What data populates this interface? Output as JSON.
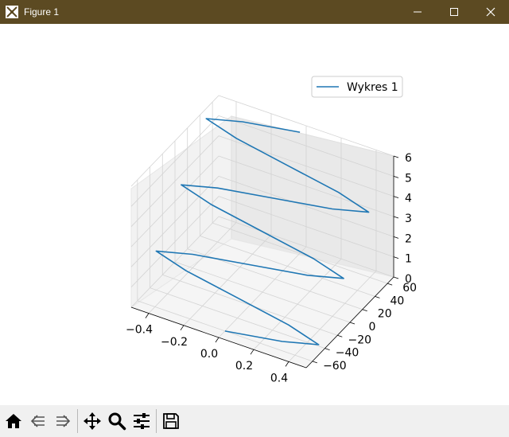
{
  "window": {
    "title": "Figure 1",
    "titlebar_color": "#5c4a22",
    "controls": [
      "minimize-icon",
      "maximize-icon",
      "close-icon"
    ]
  },
  "toolbar": {
    "buttons": [
      {
        "name": "home-icon"
      },
      {
        "name": "back-icon"
      },
      {
        "name": "forward-icon"
      },
      {
        "name": "pan-icon"
      },
      {
        "name": "zoom-icon"
      },
      {
        "name": "configure-subplots-icon"
      },
      {
        "name": "save-icon"
      }
    ]
  },
  "chart_data": {
    "type": "line",
    "projection": "3d",
    "title": "",
    "legend": {
      "entries": [
        "Wykres 1"
      ],
      "position": "top-right"
    },
    "series": [
      {
        "name": "Wykres 1",
        "color": "#1f77b4",
        "x": [
          0.0,
          0.31,
          0.5,
          0.31,
          0.0,
          -0.31,
          -0.5,
          -0.31,
          0.0,
          0.31,
          0.5,
          0.31,
          0.0,
          -0.31,
          -0.5,
          -0.31,
          0.0,
          0.31,
          0.5,
          0.31,
          0.0,
          -0.31,
          -0.5,
          -0.31,
          0.0
        ],
        "y": [
          -60,
          -55,
          -50,
          -45,
          -40,
          -35,
          -30,
          -25,
          -20,
          -15,
          -10,
          -5,
          0,
          5,
          10,
          15,
          20,
          25,
          30,
          35,
          40,
          45,
          50,
          55,
          60
        ],
        "z": [
          0.0,
          0.25,
          0.5,
          0.75,
          1.0,
          1.25,
          1.5,
          1.75,
          2.0,
          2.25,
          2.5,
          2.75,
          3.0,
          3.25,
          3.5,
          3.75,
          4.0,
          4.25,
          4.5,
          4.75,
          5.0,
          5.25,
          5.5,
          5.75,
          6.0
        ]
      }
    ],
    "x_axis": {
      "range": [
        -0.5,
        0.5
      ],
      "ticks": [
        "−0.4",
        "−0.2",
        "0.0",
        "0.2",
        "0.4"
      ]
    },
    "y_axis": {
      "range": [
        -70,
        70
      ],
      "ticks": [
        "−60",
        "−40",
        "−20",
        "0",
        "20",
        "40",
        "60"
      ]
    },
    "z_axis": {
      "range": [
        0,
        6
      ],
      "ticks": [
        "0",
        "1",
        "2",
        "3",
        "4",
        "5",
        "6"
      ]
    },
    "grid": true
  }
}
